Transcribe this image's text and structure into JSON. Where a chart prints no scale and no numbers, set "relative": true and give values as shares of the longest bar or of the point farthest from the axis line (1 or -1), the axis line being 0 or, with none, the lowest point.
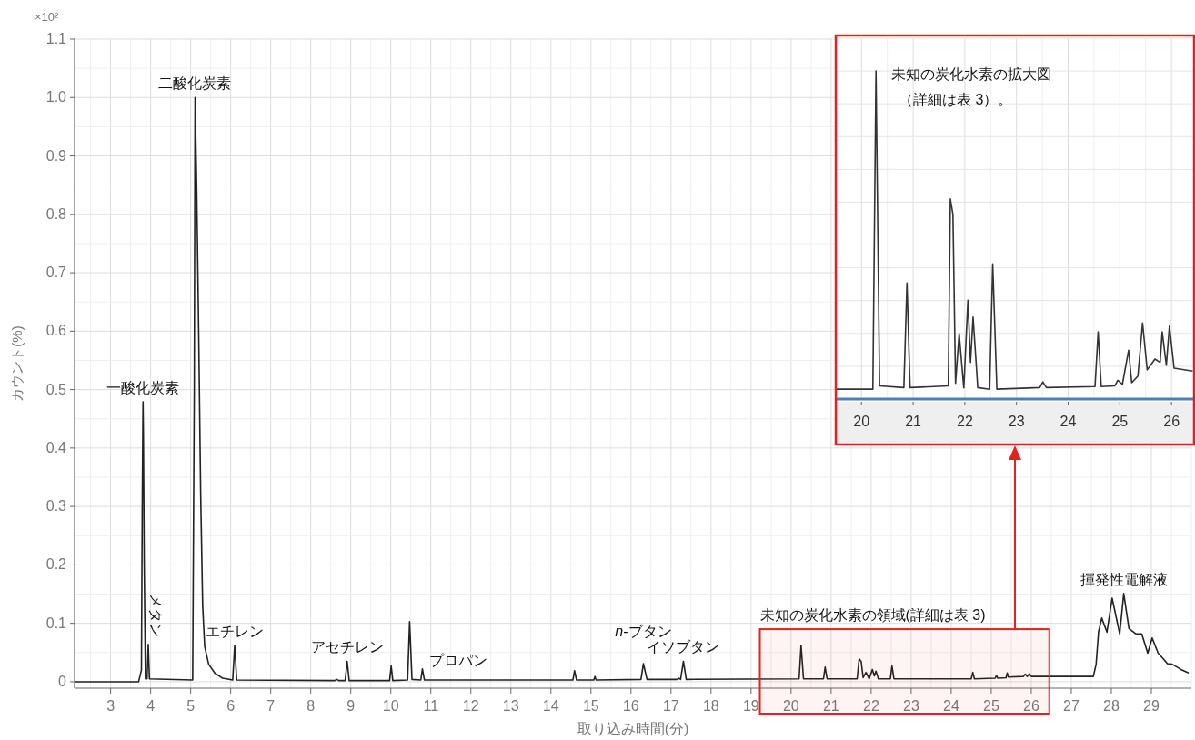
{
  "chart_data": [
    {
      "type": "line",
      "xlabel": "取り込み時間(分)",
      "ylabel": "カウント(%)",
      "xlim": [
        2.1,
        30
      ],
      "ylim": [
        -0.011,
        1.1
      ],
      "xticks": [
        3,
        4,
        5,
        6,
        7,
        8,
        9,
        10,
        11,
        12,
        13,
        14,
        15,
        16,
        17,
        18,
        19,
        20,
        21,
        22,
        23,
        24,
        25,
        26,
        27,
        28,
        29
      ],
      "yticks": [
        0,
        0.1,
        0.2,
        0.3,
        0.4,
        0.5,
        0.6,
        0.7,
        0.8,
        0.9,
        {
          "value": 1,
          "label": "1.0"
        },
        1.1
      ],
      "grid": true,
      "series": [
        {
          "color": "#222222",
          "x": [
            2.1,
            3.7,
            3.77,
            3.79,
            3.81,
            3.82,
            3.84,
            3.87,
            3.91,
            3.94,
            3.97,
            5.05,
            5.09,
            5.11,
            5.15,
            5.2,
            5.25,
            5.3,
            5.35,
            5.45,
            5.6,
            5.8,
            6.05,
            6.1,
            6.15,
            8.6,
            8.65,
            8.7,
            8.86,
            8.91,
            8.96,
            9.97,
            10.01,
            10.05,
            10.42,
            10.47,
            10.53,
            10.75,
            10.79,
            10.84,
            14.55,
            14.59,
            14.64,
            15.07,
            15.1,
            15.13,
            16.25,
            16.31,
            16.4,
            17.15,
            17.2,
            17.24,
            17.31,
            17.38,
            20.2,
            20.25,
            20.31,
            20.81,
            20.85,
            20.9,
            21.65,
            21.7,
            21.75,
            21.8,
            21.87,
            21.95,
            22.03,
            22.08,
            22.12,
            22.18,
            22.48,
            22.52,
            22.57,
            24.5,
            24.54,
            24.58,
            25.1,
            25.13,
            25.16,
            25.37,
            25.4,
            25.43,
            25.8,
            25.85,
            25.9,
            25.95,
            26.0,
            27.55,
            27.62,
            27.68,
            27.76,
            27.89,
            28.02,
            28.21,
            28.31,
            28.44,
            28.61,
            28.76,
            28.91,
            29.02,
            29.17,
            29.29,
            29.4,
            29.52,
            29.74,
            29.93
          ],
          "values": [
            0,
            0,
            0.02,
            0.3,
            0.479,
            0.417,
            0.2,
            0.005,
            0.005,
            0.064,
            0.005,
            0.003,
            0.5,
            1.0,
            0.85,
            0.6,
            0.32,
            0.13,
            0.06,
            0.03,
            0.015,
            0.006,
            0.003,
            0.062,
            0.003,
            0.002,
            0.004,
            0.002,
            0.002,
            0.035,
            0.002,
            0.002,
            0.027,
            0.002,
            0.003,
            0.103,
            0.004,
            0.003,
            0.022,
            0.003,
            0.003,
            0.019,
            0.003,
            0.003,
            0.009,
            0.003,
            0.004,
            0.031,
            0.004,
            0.004,
            0.006,
            0.004,
            0.035,
            0.004,
            0.005,
            0.062,
            0.005,
            0.005,
            0.025,
            0.005,
            0.005,
            0.039,
            0.035,
            0.007,
            0.016,
            0.005,
            0.021,
            0.01,
            0.018,
            0.005,
            0.005,
            0.027,
            0.005,
            0.005,
            0.016,
            0.005,
            0.006,
            0.011,
            0.006,
            0.007,
            0.015,
            0.008,
            0.009,
            0.013,
            0.009,
            0.014,
            0.009,
            0.009,
            0.03,
            0.085,
            0.109,
            0.085,
            0.143,
            0.082,
            0.151,
            0.091,
            0.082,
            0.082,
            0.049,
            0.075,
            0.049,
            0.04,
            0.031,
            0.03,
            0.021,
            0.015
          ]
        }
      ],
      "bands": [
        {
          "axis": "x",
          "from": 19.22,
          "to": 26.45,
          "label": "未知の炭化水素の領域(詳細は表 3)",
          "color": "#e3211f"
        }
      ],
      "annotations": [
        "×10²",
        {
          "text": "一酸化炭素",
          "x": 3.81,
          "y": 0.479
        },
        {
          "text": "メタン",
          "x": 3.94,
          "y": 0.064
        },
        {
          "text": "二酸化炭素",
          "x": 5.11,
          "y": 1.0
        },
        {
          "text": "エチレン",
          "x": 6.1,
          "y": 0.062
        },
        {
          "text": "アセチレン",
          "x": 8.91,
          "y": 0.035
        },
        {
          "text": "プロパン",
          "x": 10.79,
          "y": 0.022
        },
        {
          "text": "イソブタン",
          "x": 17.31,
          "y": 0.035
        },
        {
          "text": "*n*-ブタン",
          "x": 16.31,
          "y": 0.031
        },
        {
          "text": "揮発性電解液",
          "x": 28.31,
          "y": 0.151
        }
      ]
    },
    {
      "type": "line",
      "relative": true,
      "xlim": [
        19.52,
        26.42
      ],
      "xticks": [
        20,
        21,
        22,
        23,
        24,
        25,
        26
      ],
      "tick_labels": "x",
      "grid": true,
      "series": [
        {
          "color": "#333333",
          "x": [
            19.52,
            20.22,
            20.28,
            20.35,
            20.82,
            20.88,
            20.94,
            21.68,
            21.72,
            21.77,
            21.82,
            21.89,
            21.98,
            22.06,
            22.11,
            22.16,
            22.25,
            22.48,
            22.54,
            22.62,
            23.45,
            23.51,
            23.58,
            24.52,
            24.58,
            24.64,
            24.9,
            24.96,
            25.05,
            25.17,
            25.23,
            25.35,
            25.44,
            25.53,
            25.68,
            25.78,
            25.82,
            25.9,
            25.96,
            26.05,
            26.41
          ],
          "values": [
            0.03,
            0.03,
            1.0,
            0.04,
            0.035,
            0.354,
            0.035,
            0.04,
            0.61,
            0.563,
            0.048,
            0.2,
            0.034,
            0.301,
            0.112,
            0.25,
            0.035,
            0.03,
            0.412,
            0.03,
            0.035,
            0.052,
            0.035,
            0.038,
            0.205,
            0.038,
            0.04,
            0.057,
            0.045,
            0.149,
            0.05,
            0.07,
            0.232,
            0.089,
            0.122,
            0.112,
            0.205,
            0.103,
            0.223,
            0.094,
            0.085
          ]
        }
      ],
      "annotations": [
        "未知の炭化水素の拡大図",
        "（詳細は表 3）。"
      ]
    }
  ]
}
